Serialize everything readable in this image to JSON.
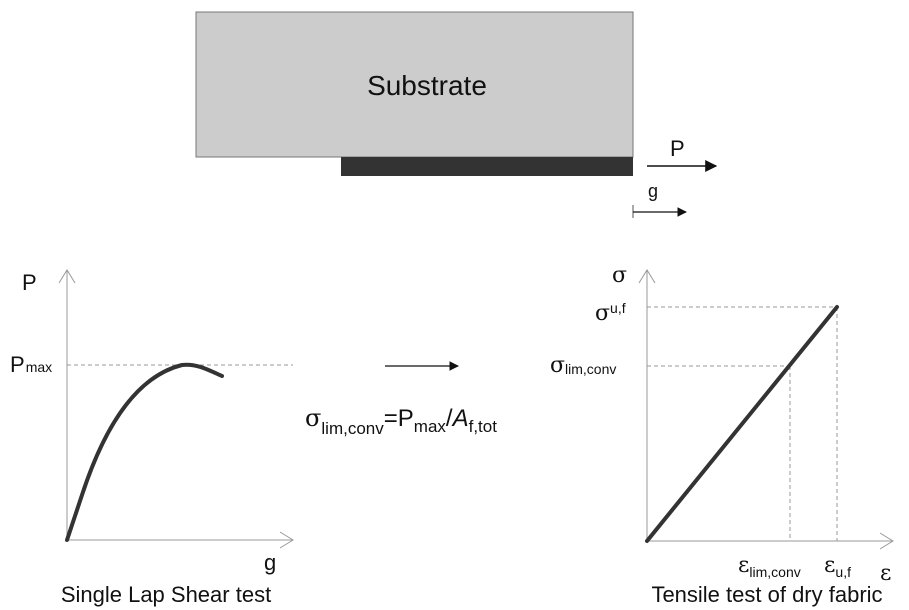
{
  "substrate": {
    "label": "Substrate"
  },
  "arrows": {
    "load": "P",
    "slip": "g"
  },
  "left_plot": {
    "y_label": "P",
    "p_max_main": "P",
    "p_max_sub": "max",
    "x_label": "g",
    "caption": "Single Lap Shear test"
  },
  "formula": {
    "sigma": "σ",
    "sigma_sub": "lim,conv",
    "eq_p": "=P",
    "max_sub": "max",
    "slash": "/",
    "a": "A",
    "a_sub": "f,tot"
  },
  "right_plot": {
    "y_label": "σ",
    "sigma_uf_main": "σ",
    "sigma_uf_sub": "u,f",
    "sigma_lim_main": "σ",
    "sigma_lim_sub": "lim,conv",
    "eps_lim_main": "ε",
    "eps_lim_sub": "lim,conv",
    "eps_uf_main": "ε",
    "eps_uf_sub": "u,f",
    "x_label": "ε",
    "caption": "Tensile test of dry fabric"
  },
  "colors": {
    "substrate_fill": "#cccccc",
    "reinforcement": "#333333",
    "curve": "#333333",
    "axis": "#999999"
  }
}
